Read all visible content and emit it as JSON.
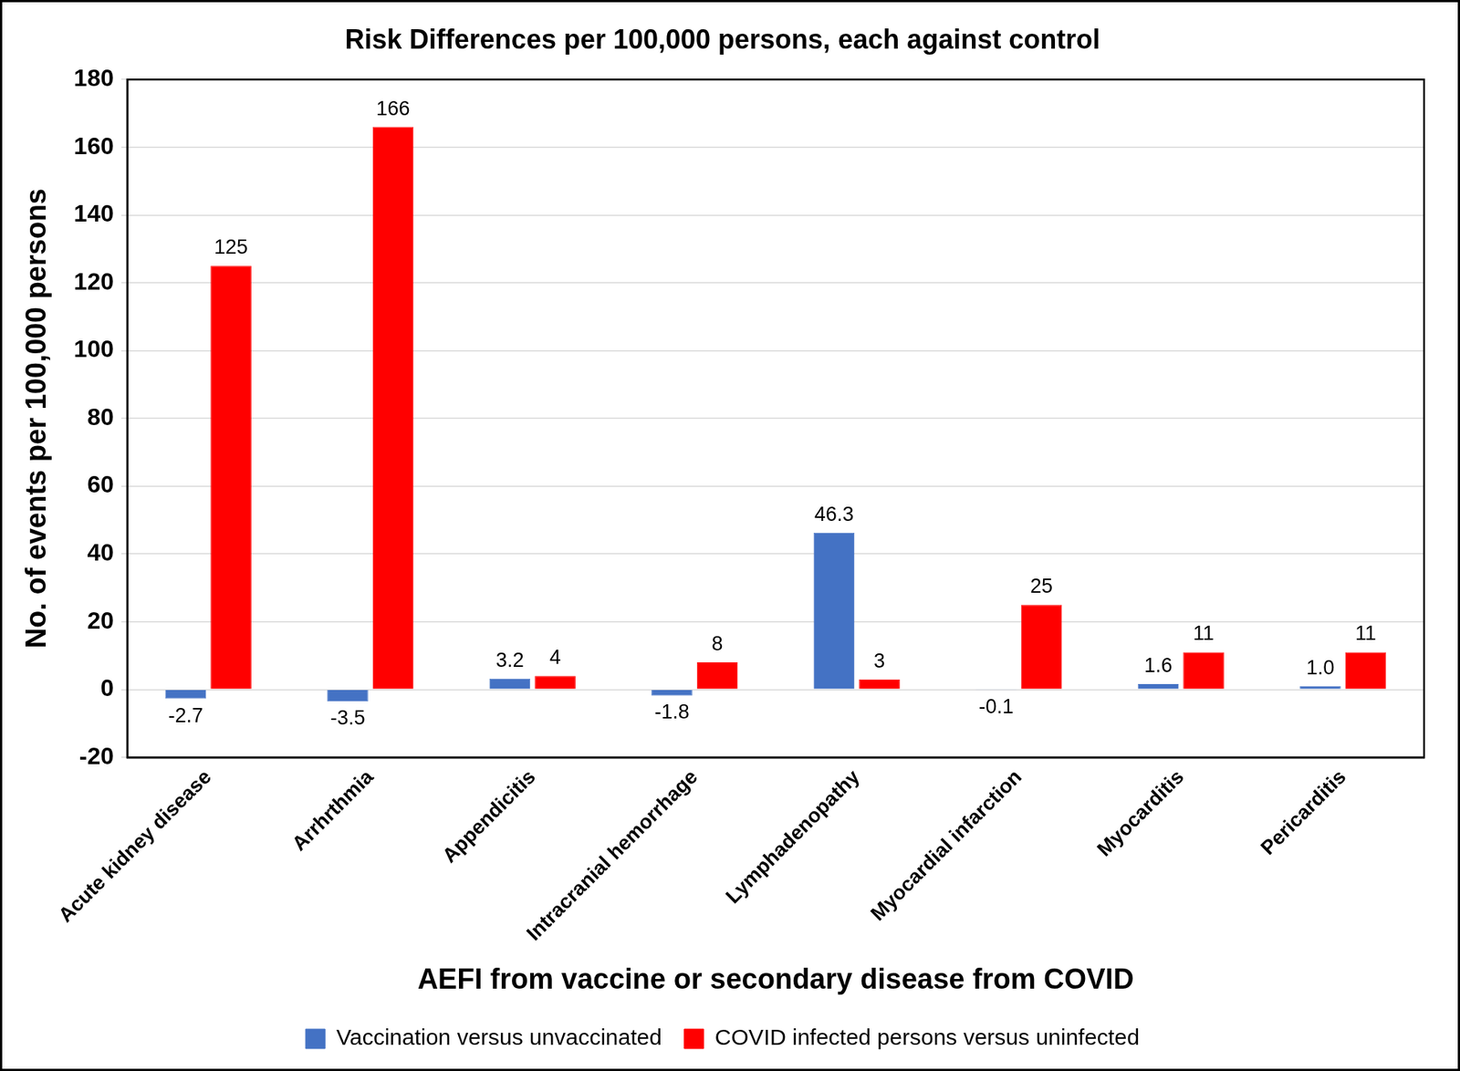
{
  "chart_data": {
    "type": "bar",
    "title": "Risk Differences per 100,000 persons, each against control",
    "x_label": "AEFI from vaccine or secondary disease from COVID",
    "y_label": "No. of events per 100,000 persons",
    "categories": [
      "Acute kidney disease",
      "Arrhrthmia",
      "Appendicitis",
      "Intracranial hemorrhage",
      "Lymphadenopathy",
      "Myocardial infarction",
      "Myocarditis",
      "Pericarditis"
    ],
    "series": [
      {
        "name": "Vaccination versus unvaccinated",
        "color": "#4472c4",
        "values": [
          -2.7,
          -3.5,
          3.2,
          -1.8,
          46.3,
          -0.1,
          1.6,
          1.0
        ],
        "value_labels": [
          "-2.7",
          "-3.5",
          "3.2",
          "-1.8",
          "46.3",
          "-0.1",
          "1.6",
          "1.0"
        ]
      },
      {
        "name": "COVID infected persons versus uninfected",
        "color": "#ff0000",
        "values": [
          125,
          166,
          4,
          8,
          3,
          25,
          11,
          11
        ]
      }
    ],
    "ylim": [
      -20,
      180
    ],
    "yticks": [
      -20,
      0,
      20,
      40,
      60,
      80,
      100,
      120,
      140,
      160,
      180
    ],
    "grid": true,
    "legend": "bottom",
    "data_labels": true
  }
}
